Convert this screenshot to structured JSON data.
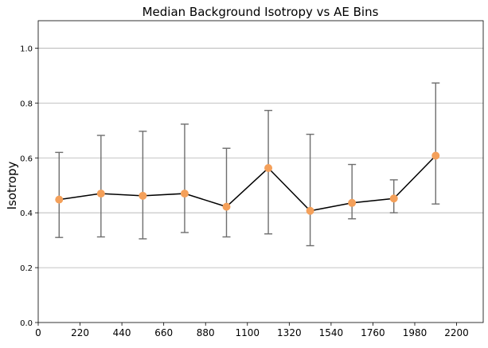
{
  "chart_data": {
    "type": "line",
    "title": "Median Background Isotropy vs AE Bins",
    "xlabel": "",
    "ylabel": "Isotropy",
    "xlim": [
      0,
      2340
    ],
    "ylim": [
      0,
      1.1
    ],
    "x_ticks": [
      0,
      220,
      440,
      660,
      880,
      1100,
      1320,
      1540,
      1760,
      1980,
      2200
    ],
    "y_ticks": [
      0.0,
      0.2,
      0.4,
      0.6,
      0.8,
      1.0
    ],
    "y_tick_labels": [
      "0.0",
      "0.2",
      "0.4",
      "0.6",
      "0.8",
      "1.0"
    ],
    "grid": "horizontal",
    "series": [
      {
        "x": [
          110,
          330,
          550,
          770,
          990,
          1210,
          1430,
          1650,
          1870,
          2090
        ],
        "values": [
          0.448,
          0.47,
          0.462,
          0.47,
          0.422,
          0.563,
          0.407,
          0.436,
          0.452,
          0.608
        ],
        "err_low": [
          0.31,
          0.312,
          0.305,
          0.328,
          0.312,
          0.323,
          0.28,
          0.378,
          0.4,
          0.432
        ],
        "err_high": [
          0.62,
          0.682,
          0.697,
          0.723,
          0.635,
          0.773,
          0.686,
          0.576,
          0.52,
          0.873
        ],
        "line_color": "#000000",
        "marker_color": "#f4a05a",
        "errorbar_color": "#6e6e6e"
      }
    ]
  }
}
